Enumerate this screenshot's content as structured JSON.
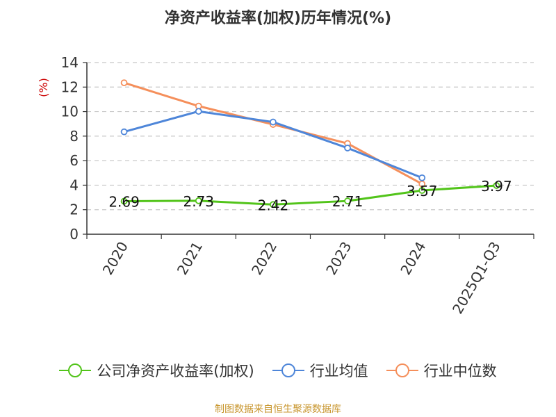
{
  "chart_data": {
    "type": "line",
    "title": "净资产收益率(加权)历年情况(%)",
    "ylabel": "(%)",
    "xlabel": "",
    "categories": [
      "2020",
      "2021",
      "2022",
      "2023",
      "2024",
      "2025Q1-Q3"
    ],
    "ylim": [
      0,
      14
    ],
    "yticks": [
      0,
      2,
      4,
      6,
      8,
      10,
      12,
      14
    ],
    "grid": true,
    "legend_position": "bottom",
    "series": [
      {
        "name": "公司净资产收益率(加权)",
        "color": "#52c41a",
        "values": [
          2.69,
          2.73,
          2.42,
          2.71,
          3.57,
          3.97
        ],
        "labels": [
          "2.69",
          "2.73",
          "2.42",
          "2.71",
          "3.57",
          "3.97"
        ]
      },
      {
        "name": "行业均值",
        "color": "#4e86d9",
        "values": [
          8.35,
          10.02,
          9.15,
          7.03,
          4.6,
          null
        ]
      },
      {
        "name": "行业中位数",
        "color": "#f58f5b",
        "values": [
          12.35,
          10.45,
          8.95,
          7.4,
          4.1,
          null
        ]
      }
    ]
  },
  "source": {
    "text": "制图数据来自恒生聚源数据库",
    "color": "#c8962e"
  },
  "ylabel_color": "#cc0000"
}
